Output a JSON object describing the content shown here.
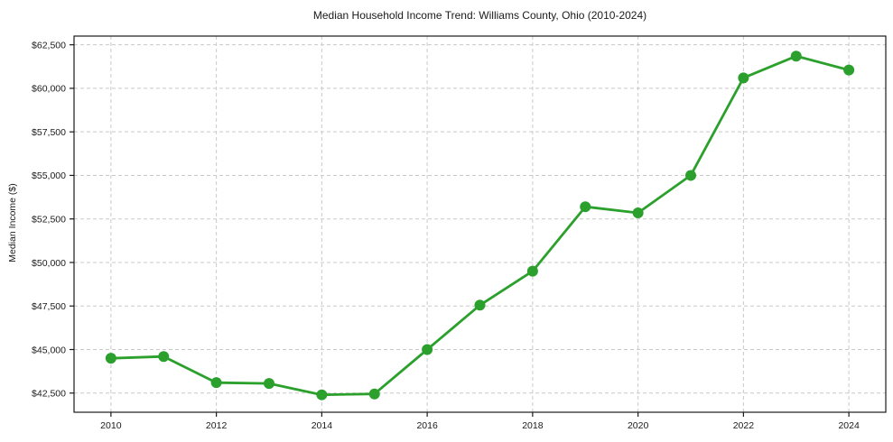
{
  "chart_data": {
    "type": "line",
    "title": "Median Household Income Trend: Williams County, Ohio (2010-2024)",
    "xlabel": "",
    "ylabel": "Median Income ($)",
    "x": [
      2010,
      2011,
      2012,
      2013,
      2014,
      2015,
      2016,
      2017,
      2018,
      2019,
      2020,
      2021,
      2022,
      2023,
      2024
    ],
    "series": [
      {
        "name": "Median Household Income",
        "values": [
          44500,
          44600,
          43100,
          43050,
          42400,
          42450,
          45000,
          47550,
          49500,
          53200,
          52850,
          55000,
          60600,
          61850,
          61050
        ]
      }
    ],
    "marker": "circle",
    "grid": true,
    "grid_style": "dashed",
    "legend": "none",
    "xlim": [
      2009.3,
      2024.7
    ],
    "ylim": [
      41400,
      63000
    ],
    "xticks": [
      2010,
      2012,
      2014,
      2016,
      2018,
      2020,
      2022,
      2024
    ],
    "xtick_labels": [
      "2010",
      "2012",
      "2014",
      "2016",
      "2018",
      "2020",
      "2022",
      "2024"
    ],
    "yticks": [
      42500,
      45000,
      47500,
      50000,
      52500,
      55000,
      57500,
      60000,
      62500
    ],
    "ytick_labels": [
      "$42,500",
      "$45,000",
      "$47,500",
      "$50,000",
      "$52,500",
      "$55,000",
      "$57,500",
      "$60,000",
      "$62,500"
    ]
  },
  "colors": {
    "line": "#2ca02c",
    "marker": "#2ca02c",
    "grid": "#c9c9c9",
    "axis": "#1a1a1a",
    "text": "#1a1a1a",
    "background": "#ffffff"
  }
}
